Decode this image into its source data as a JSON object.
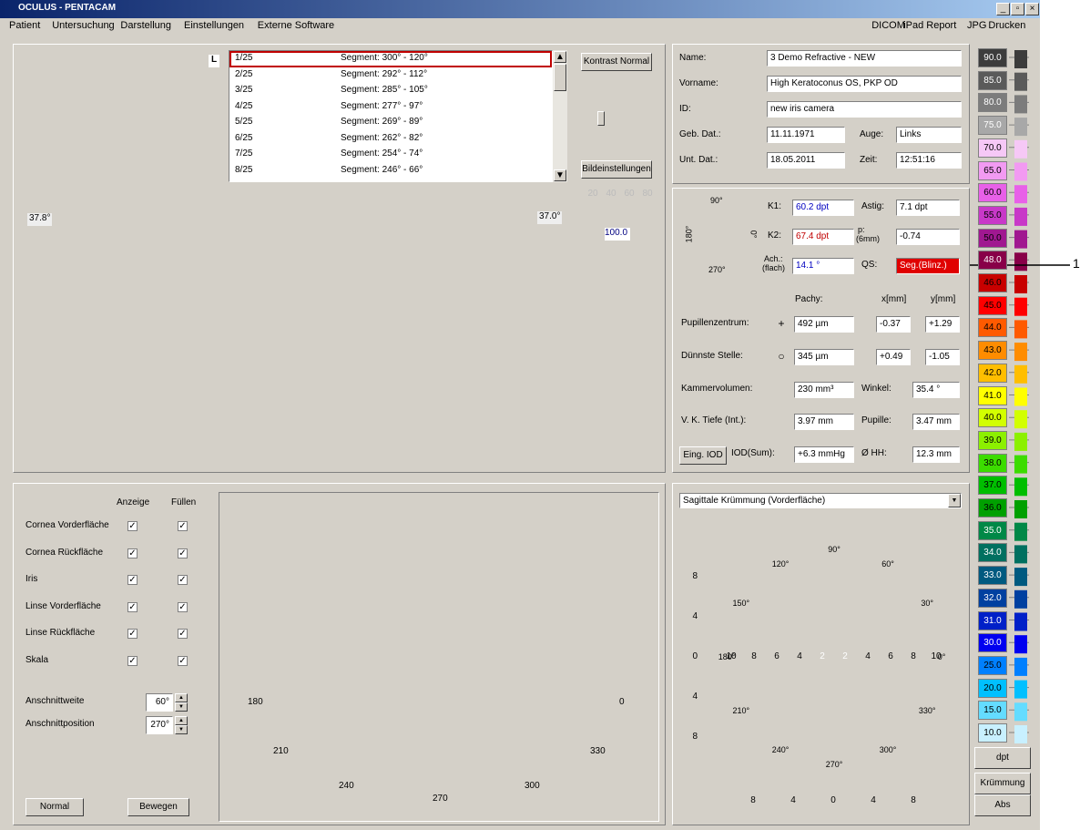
{
  "window": {
    "title": "OCULUS - PENTACAM"
  },
  "menu": {
    "left": [
      "Patient",
      "Untersuchung",
      "Darstellung",
      "Einstellungen",
      "Externe Software"
    ],
    "right": [
      "DICOM",
      "iPad Report",
      "JPG",
      "Drucken"
    ]
  },
  "eye_image": {
    "label": "L"
  },
  "segments": [
    {
      "index": "1/25",
      "label": "Segment: 300° - 120°"
    },
    {
      "index": "2/25",
      "label": "Segment: 292° - 112°"
    },
    {
      "index": "3/25",
      "label": "Segment: 285° - 105°"
    },
    {
      "index": "4/25",
      "label": "Segment: 277° - 97°"
    },
    {
      "index": "5/25",
      "label": "Segment: 269° - 89°"
    },
    {
      "index": "6/25",
      "label": "Segment: 262° - 82°"
    },
    {
      "index": "7/25",
      "label": "Segment: 254° - 74°"
    },
    {
      "index": "8/25",
      "label": "Segment: 246° - 66°"
    }
  ],
  "buttons": {
    "contrast": "Kontrast Normal",
    "image_settings": "Bildeinstellungen"
  },
  "scheimpflug": {
    "left_angle": "37.8°",
    "right_angle": "37.0°",
    "histogram_ticks": [
      "20",
      "40",
      "60",
      "80"
    ],
    "histogram_value": "100.0"
  },
  "patient": {
    "fields": [
      {
        "label": "Name:",
        "value": "3 Demo Refractive - NEW"
      },
      {
        "label": "Vorname:",
        "value": "High Keratoconus OS, PKP OD"
      },
      {
        "label": "ID:",
        "value": "new iris camera"
      },
      {
        "label": "Geb. Dat.:",
        "value": "11.11.1971"
      },
      {
        "label": "Auge:",
        "value": "Links"
      },
      {
        "label": "Unt. Dat.:",
        "value": "18.05.2011"
      },
      {
        "label": "Zeit:",
        "value": "12:51:16"
      }
    ]
  },
  "keratometry": {
    "compass": [
      "90°",
      "180°",
      "0°",
      "270°"
    ],
    "fields": [
      {
        "label": "K1:",
        "value": "60.2 dpt"
      },
      {
        "label": "Astig:",
        "value": "7.1 dpt"
      },
      {
        "label": "K2:",
        "value": "67.4 dpt"
      },
      {
        "label": "p:",
        "sublabel": "(6mm)",
        "value": "-0.74"
      },
      {
        "label": "Ach.:",
        "sublabel": "(flach)",
        "value": "14.1 °"
      },
      {
        "label": "QS:",
        "value": "Seg.(Blinz.)"
      }
    ]
  },
  "pachy": {
    "headers": [
      "Pachy:",
      "x[mm]",
      "y[mm]"
    ],
    "rows": [
      {
        "label": "Pupillenzentrum:",
        "symbol": "+",
        "pachy": "492 µm",
        "x": "-0.37",
        "y": "+1.29"
      },
      {
        "label": "Dünnste Stelle:",
        "symbol": "○",
        "pachy": "345 µm",
        "x": "+0.49",
        "y": "-1.05"
      }
    ]
  },
  "chamber": {
    "fields": [
      {
        "label": "Kammervolumen:",
        "value": "230 mm³"
      },
      {
        "label": "Winkel:",
        "value": "35.4 °"
      },
      {
        "label": "V. K. Tiefe (Int.):",
        "value": "3.97 mm"
      },
      {
        "label": "Pupille:",
        "value": "3.47 mm"
      },
      {
        "label": "IOD(Sum):",
        "value": "+6.3 mmHg"
      },
      {
        "label": "Ø HH:",
        "value": "12.3 mm"
      }
    ],
    "iop_button": "Eing. IOD"
  },
  "scale": {
    "items": [
      {
        "label": "90.0",
        "color": "#3c3c3c"
      },
      {
        "label": "85.0",
        "color": "#5a5a5a"
      },
      {
        "label": "80.0",
        "color": "#7c7c7c"
      },
      {
        "label": "75.0",
        "color": "#a8a8a8"
      },
      {
        "label": "70.0",
        "color": "#f6c8f6"
      },
      {
        "label": "65.0",
        "color": "#f29af2"
      },
      {
        "label": "60.0",
        "color": "#e860e8"
      },
      {
        "label": "55.0",
        "color": "#c838c8"
      },
      {
        "label": "50.0",
        "color": "#a01890"
      },
      {
        "label": "48.0",
        "color": "#880048"
      },
      {
        "label": "46.0",
        "color": "#c80000"
      },
      {
        "label": "45.0",
        "color": "#ff0000"
      },
      {
        "label": "44.0",
        "color": "#ff5a00"
      },
      {
        "label": "43.0",
        "color": "#ff8c00"
      },
      {
        "label": "42.0",
        "color": "#ffbe00"
      },
      {
        "label": "41.0",
        "color": "#ffff00"
      },
      {
        "label": "40.0",
        "color": "#d2ff00"
      },
      {
        "label": "39.0",
        "color": "#8cf000"
      },
      {
        "label": "38.0",
        "color": "#3cdc00"
      },
      {
        "label": "37.0",
        "color": "#00be00"
      },
      {
        "label": "36.0",
        "color": "#00a000"
      },
      {
        "label": "35.0",
        "color": "#008846"
      },
      {
        "label": "34.0",
        "color": "#007060"
      },
      {
        "label": "33.0",
        "color": "#005a80"
      },
      {
        "label": "32.0",
        "color": "#0040a0"
      },
      {
        "label": "31.0",
        "color": "#0020c8"
      },
      {
        "label": "30.0",
        "color": "#0000f0"
      },
      {
        "label": "25.0",
        "color": "#0080ff"
      },
      {
        "label": "20.0",
        "color": "#00c0ff"
      },
      {
        "label": "15.0",
        "color": "#64dcff"
      },
      {
        "label": "10.0",
        "color": "#c8f0ff"
      }
    ],
    "unit": "dpt",
    "mode": "Krümmung",
    "reference": "Abs"
  },
  "display_options": {
    "headers": [
      "Anzeige",
      "Füllen"
    ],
    "rows": [
      {
        "label": "Cornea Vorderfläche",
        "show": true,
        "fill": true
      },
      {
        "label": "Cornea Rückfläche",
        "show": true,
        "fill": true
      },
      {
        "label": "Iris",
        "show": true,
        "fill": true
      },
      {
        "label": "Linse Vorderfläche",
        "show": true,
        "fill": true
      },
      {
        "label": "Linse Rückfläche",
        "show": true,
        "fill": true
      },
      {
        "label": "Skala",
        "show": true,
        "fill": true
      }
    ]
  },
  "cut": [
    {
      "label": "Anschnittweite",
      "value": "60°"
    },
    {
      "label": "Anschnittposition",
      "value": "270°"
    }
  ],
  "bottom_buttons": [
    "Normal",
    "Bewegen"
  ],
  "model3d": {
    "angle_labels": [
      "180",
      "0",
      "210",
      "330",
      "240",
      "300",
      "270"
    ]
  },
  "map": {
    "dropdown": "Sagittale Krümmung (Vorderfläche)",
    "y_ticks": [
      "8",
      "4",
      "0",
      "4",
      "8"
    ],
    "x_ticks": [
      "8",
      "4",
      "0",
      "4",
      "8"
    ],
    "polar_labels": [
      "90°",
      "60°",
      "30°",
      "0°",
      "330°",
      "300°",
      "270°",
      "240°",
      "210°",
      "180°",
      "150°",
      "120°"
    ],
    "ring_labels": [
      "10",
      "8",
      "6",
      "4",
      "2",
      "2",
      "4",
      "6",
      "8",
      "10"
    ]
  },
  "annotation": "1"
}
